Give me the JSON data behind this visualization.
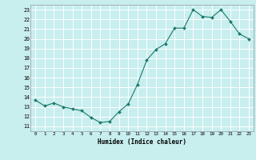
{
  "x": [
    0,
    1,
    2,
    3,
    4,
    5,
    6,
    7,
    8,
    9,
    10,
    11,
    12,
    13,
    14,
    15,
    16,
    17,
    18,
    19,
    20,
    21,
    22,
    23
  ],
  "y": [
    13.7,
    13.1,
    13.4,
    13.0,
    12.8,
    12.6,
    11.9,
    11.4,
    11.5,
    12.5,
    13.3,
    15.3,
    17.8,
    18.9,
    19.5,
    21.1,
    21.1,
    23.0,
    22.3,
    22.2,
    23.0,
    21.8,
    20.5,
    20.0
  ],
  "xlabel": "Humidex (Indice chaleur)",
  "xlim": [
    -0.5,
    23.5
  ],
  "ylim": [
    10.5,
    23.5
  ],
  "yticks": [
    11,
    12,
    13,
    14,
    15,
    16,
    17,
    18,
    19,
    20,
    21,
    22,
    23
  ],
  "xticks": [
    0,
    1,
    2,
    3,
    4,
    5,
    6,
    7,
    8,
    9,
    10,
    11,
    12,
    13,
    14,
    15,
    16,
    17,
    18,
    19,
    20,
    21,
    22,
    23
  ],
  "line_color": "#1a7a6e",
  "marker_color": "#1a7a6e",
  "bg_color": "#c8eeee",
  "grid_color": "#ffffff",
  "label_color": "#000000"
}
